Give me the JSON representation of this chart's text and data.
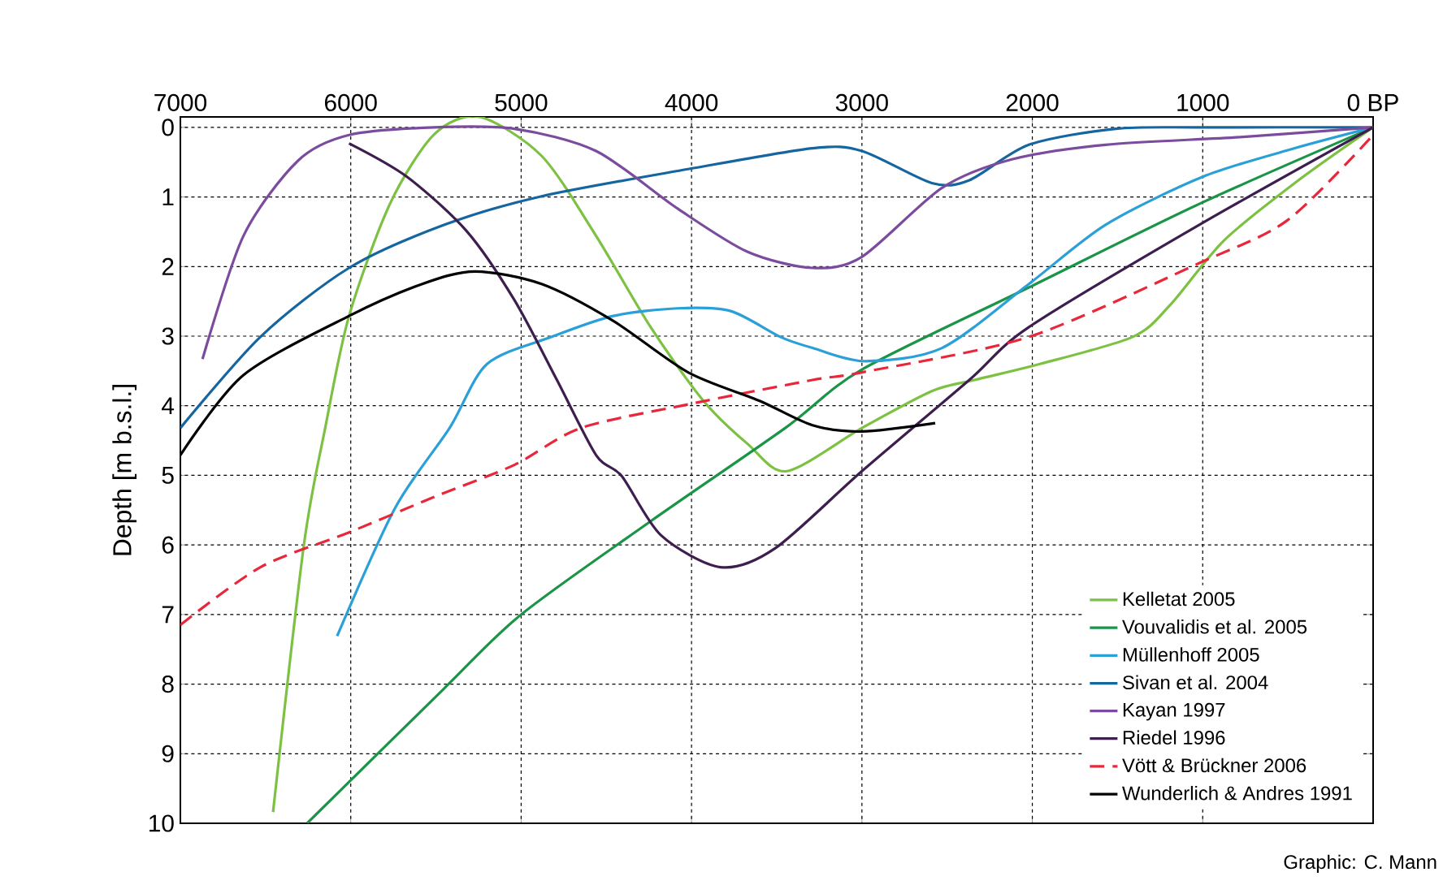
{
  "chart_data": {
    "type": "line",
    "ylabel": "Depth [m b.s.l.]",
    "xlim": [
      7000,
      0
    ],
    "ylim": [
      10,
      -0.15
    ],
    "xticks": [
      7000,
      6000,
      5000,
      4000,
      3000,
      2000,
      1000,
      {
        "value": 0,
        "label": "0 BP"
      }
    ],
    "yticks": [
      0,
      1,
      2,
      3,
      4,
      5,
      6,
      7,
      8,
      9,
      10
    ],
    "grid": true,
    "legend": "bottom right",
    "annotations": [
      "Graphic: C. Mann"
    ],
    "series": [
      {
        "name": "Kelletat 2005",
        "color": "#7dc142",
        "line_style": "solid",
        "x": [
          6456,
          6275,
          6150,
          6010,
          5770,
          5510,
          5245,
          4880,
          4560,
          4240,
          3930,
          3670,
          3440,
          3000,
          2590,
          2340,
          1955,
          1410,
          1190,
          877,
          460,
          0
        ],
        "values": [
          9.84,
          6.0,
          4.32,
          2.71,
          1.1,
          0.1,
          -0.15,
          0.41,
          1.56,
          2.87,
          3.93,
          4.55,
          4.94,
          4.32,
          3.79,
          3.63,
          3.4,
          3.01,
          2.55,
          1.63,
          0.8,
          0
        ]
      },
      {
        "name": "Vouvalidis et al. 2005",
        "color": "#1a9447",
        "line_style": "solid",
        "x": [
          6256,
          5455,
          5000,
          4240,
          3450,
          3000,
          2020,
          1020,
          0
        ],
        "values": [
          10.0,
          8.07,
          7.0,
          5.66,
          4.32,
          3.48,
          2.3,
          1.1,
          0
        ]
      },
      {
        "name": "Müllenhoff 2005",
        "color": "#2a9fd8",
        "line_style": "solid",
        "x": [
          6080,
          5740,
          5420,
          5200,
          4820,
          4460,
          4080,
          3770,
          3480,
          3290,
          2980,
          2530,
          2020,
          1570,
          1000,
          460,
          0
        ],
        "values": [
          7.31,
          5.47,
          4.32,
          3.4,
          3.01,
          2.71,
          2.6,
          2.64,
          3.01,
          3.17,
          3.36,
          3.17,
          2.25,
          1.4,
          0.71,
          0.3,
          0
        ]
      },
      {
        "name": "Sivan et al. 2004",
        "color": "#1565a0",
        "line_style": "solid",
        "x": [
          7000,
          6530,
          6010,
          5450,
          4880,
          4020,
          3290,
          3000,
          2590,
          2370,
          2020,
          1510,
          1000,
          0
        ],
        "values": [
          4.32,
          3.01,
          2.02,
          1.4,
          0.99,
          0.6,
          0.3,
          0.34,
          0.8,
          0.76,
          0.25,
          0.02,
          0,
          0
        ]
      },
      {
        "name": "Kayan 1997",
        "color": "#7b4c9e",
        "line_style": "solid",
        "x": [
          6870,
          6630,
          6310,
          6010,
          5510,
          5040,
          4560,
          4080,
          3670,
          3290,
          3000,
          2530,
          2120,
          1570,
          780,
          0
        ],
        "values": [
          3.33,
          1.56,
          0.48,
          0.11,
          0,
          0.02,
          0.34,
          1.17,
          1.79,
          2.02,
          1.86,
          0.87,
          0.46,
          0.25,
          0.14,
          0
        ]
      },
      {
        "name": "Riedel 1996",
        "color": "#3d1e4f",
        "line_style": "solid",
        "x": [
          6010,
          5670,
          5320,
          5040,
          4790,
          4560,
          4410,
          4180,
          3830,
          3510,
          3000,
          2370,
          2020,
          1020,
          0
        ],
        "values": [
          0.23,
          0.71,
          1.49,
          2.48,
          3.63,
          4.71,
          5.01,
          5.86,
          6.32,
          6.05,
          4.94,
          3.63,
          2.87,
          1.4,
          0
        ]
      },
      {
        "name": "Vött & Brückner 2006",
        "color": "#e8283a",
        "line_style": "dashed",
        "x": [
          7000,
          6530,
          6010,
          5510,
          5040,
          4650,
          4020,
          3290,
          3000,
          2020,
          1020,
          500,
          0
        ],
        "values": [
          7.15,
          6.32,
          5.82,
          5.31,
          4.85,
          4.32,
          3.98,
          3.63,
          3.52,
          3.01,
          1.95,
          1.33,
          0.11
        ]
      },
      {
        "name": "Wunderlich & Andres 1991",
        "color": "#000000",
        "line_style": "solid",
        "x": [
          7000,
          6630,
          6010,
          5580,
          5270,
          4880,
          4460,
          4020,
          3600,
          3290,
          3000,
          2570
        ],
        "values": [
          4.71,
          3.56,
          2.71,
          2.25,
          2.07,
          2.25,
          2.78,
          3.52,
          3.93,
          4.28,
          4.37,
          4.25
        ]
      }
    ]
  }
}
